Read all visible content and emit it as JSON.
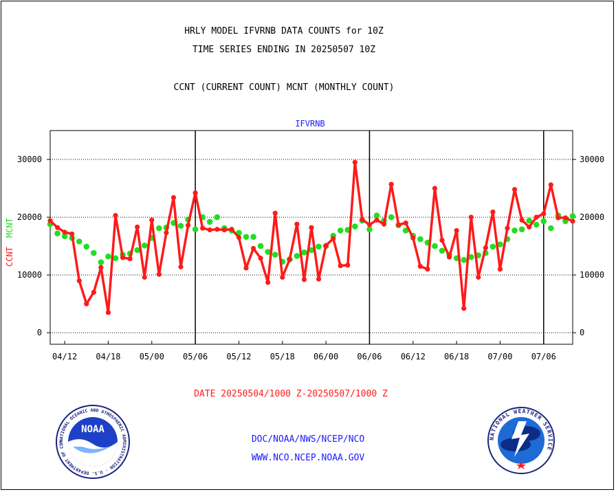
{
  "header": {
    "title_line1": "HRLY MODEL IFVRNB DATA COUNTS for 10Z",
    "title_line2": "TIME SERIES ENDING IN 20250507 10Z",
    "subtitle": "CCNT (CURRENT COUNT) MCNT (MONTHLY COUNT)"
  },
  "footer": {
    "date_range": "DATE 20250504/1000 Z-20250507/1000 Z",
    "link1": "DOC/NOAA/NWS/NCEP/NCO",
    "link2": "WWW.NCO.NCEP.NOAA.GOV"
  },
  "logos": {
    "left_icon": "noaa-logo-icon",
    "left_ring_text": "NATIONAL OCEANIC AND ATMOSPHERIC ADMINISTRATION · U.S. DEPARTMENT OF COMMERCE",
    "left_center_text": "NOAA",
    "right_icon": "national-weather-service-logo-icon",
    "right_ring_text": "NATIONAL WEATHER SERVICE"
  },
  "colors": {
    "ccnt": "#ff1a1a",
    "mcnt": "#22dd22",
    "series_title": "#1a1aff"
  },
  "chart_data": {
    "type": "line",
    "title": "IFVRNB",
    "ylabel_left_parts": [
      "CCNT",
      "MCNT"
    ],
    "ylim": [
      -2000,
      35000
    ],
    "yticks": [
      0,
      10000,
      20000,
      30000
    ],
    "ytick_labels": [
      "0",
      "10000",
      "20000",
      "30000"
    ],
    "x_tick_labels": [
      "04/12",
      "04/18",
      "05/00",
      "05/06",
      "05/12",
      "05/18",
      "06/00",
      "06/06",
      "06/12",
      "06/18",
      "07/00",
      "07/06"
    ],
    "x_tick_positions": [
      2,
      8,
      14,
      20,
      26,
      32,
      38,
      44,
      50,
      56,
      62,
      68
    ],
    "day_boundaries": [
      20,
      44,
      68
    ],
    "xlim": [
      0,
      72
    ],
    "grid": "horizontal dotted",
    "series": [
      {
        "name": "CCNT",
        "color": "#ff1a1a",
        "x": [
          0,
          1,
          2,
          3,
          4,
          5,
          6,
          7,
          8,
          9,
          10,
          11,
          12,
          13,
          14,
          15,
          16,
          17,
          18,
          19,
          20,
          21,
          22,
          23,
          24,
          25,
          26,
          27,
          28,
          29,
          30,
          31,
          32,
          33,
          34,
          35,
          36,
          37,
          38,
          39,
          40,
          41,
          42,
          43,
          44,
          45,
          46,
          47,
          48,
          49,
          50,
          51,
          52,
          53,
          54,
          55,
          56,
          57,
          58,
          59,
          60,
          61,
          62,
          63,
          64,
          65,
          66,
          67,
          68,
          69,
          70,
          71,
          72
        ],
        "values": [
          19400,
          18200,
          17400,
          17100,
          9000,
          5000,
          7000,
          11300,
          3500,
          20300,
          13000,
          12800,
          18300,
          9600,
          19500,
          10100,
          17300,
          23400,
          11400,
          18600,
          24200,
          18100,
          17800,
          17900,
          17800,
          17900,
          16500,
          11200,
          14600,
          12900,
          8700,
          20700,
          9600,
          12700,
          18800,
          9200,
          18200,
          9300,
          15100,
          16300,
          11600,
          11700,
          29500,
          19600,
          18700,
          19500,
          18800,
          25700,
          18700,
          19000,
          16400,
          11500,
          11000,
          25000,
          16000,
          13100,
          17700,
          4200,
          20000,
          9600,
          14700,
          20900,
          11000,
          18100,
          24800,
          19500,
          18300,
          20000,
          20600,
          25600,
          19900,
          19900,
          19300
        ]
      },
      {
        "name": "MCNT",
        "color": "#22dd22",
        "x": [
          0,
          1,
          2,
          3,
          4,
          5,
          6,
          7,
          8,
          9,
          10,
          11,
          12,
          13,
          14,
          15,
          16,
          17,
          18,
          19,
          20,
          21,
          22,
          23,
          24,
          25,
          26,
          27,
          28,
          29,
          30,
          31,
          32,
          33,
          34,
          35,
          36,
          37,
          38,
          39,
          40,
          41,
          42,
          43,
          44,
          45,
          46,
          47,
          48,
          49,
          50,
          51,
          52,
          53,
          54,
          55,
          56,
          57,
          58,
          59,
          60,
          61,
          62,
          63,
          64,
          65,
          66,
          67,
          68,
          69,
          70,
          71,
          72
        ],
        "values": [
          18800,
          17200,
          16700,
          16400,
          15800,
          14900,
          13800,
          12200,
          13200,
          12900,
          13500,
          13700,
          14300,
          15100,
          16400,
          18100,
          18200,
          19000,
          18500,
          19600,
          17900,
          20000,
          19200,
          20000,
          18100,
          17700,
          17300,
          16600,
          16600,
          15000,
          14000,
          13500,
          12300,
          12700,
          13300,
          13900,
          14300,
          14900,
          15000,
          16800,
          17700,
          17800,
          18400,
          19400,
          17900,
          20300,
          19400,
          20000,
          18600,
          17700,
          16800,
          16200,
          15600,
          15000,
          14200,
          13500,
          12900,
          12600,
          13100,
          13400,
          13800,
          14900,
          15300,
          16200,
          17700,
          17900,
          19400,
          18700,
          19300,
          18100,
          20300,
          19300,
          20200
        ]
      }
    ]
  }
}
